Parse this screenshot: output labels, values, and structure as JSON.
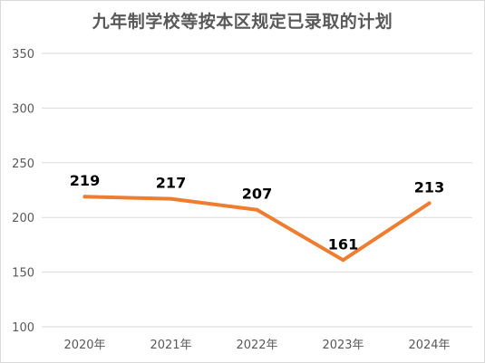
{
  "chart_data": {
    "type": "line",
    "title": "九年制学校等按本区规定已录取的计划",
    "categories": [
      "2020年",
      "2021年",
      "2022年",
      "2023年",
      "2024年"
    ],
    "values": [
      219,
      217,
      207,
      161,
      213
    ],
    "ylim": [
      100,
      350
    ],
    "yticks": [
      100,
      150,
      200,
      250,
      300,
      350
    ],
    "grid": true,
    "legend": "none",
    "colors": {
      "line": "#ed7d31",
      "grid": "#d9d9d9",
      "axis_text": "#595959",
      "title": "#595959"
    }
  }
}
